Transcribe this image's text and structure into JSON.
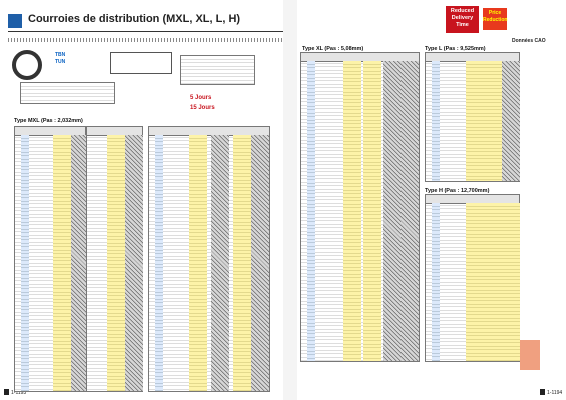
{
  "header": {
    "title": "Courroies de distribution (MXL, XL, L, H)",
    "badge_delivery": "Reduced Delivery Time",
    "badge_price": "Price Reduction",
    "cad": "Données CAO"
  },
  "intro": {
    "products": [
      "TBN",
      "TUN"
    ],
    "delivery_fast": "5 Jours",
    "delivery_slow": "15 Jours"
  },
  "sections": [
    {
      "title": "Type MXL (Pas : 2,032mm)"
    },
    {
      "title": "Type XL (Pas : 5,08mm)"
    },
    {
      "title": "Type L (Pas : 9,525mm)"
    },
    {
      "title": "Type H (Pas : 12,700mm)"
    }
  ],
  "pages": {
    "left": "1-1193",
    "right": "1-1194"
  }
}
